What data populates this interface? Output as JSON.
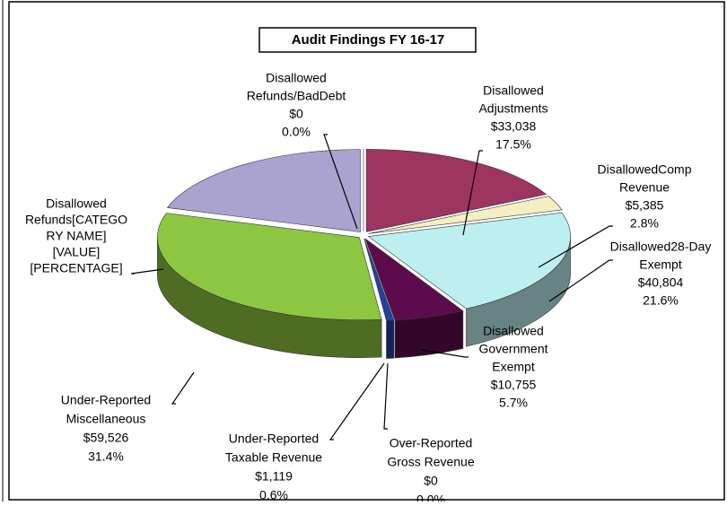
{
  "chart_data": {
    "type": "pie3d",
    "title": "Audit Findings FY 16-17",
    "categories": [
      [
        "Disallowed",
        "Refunds/BadDebt"
      ],
      [
        "Disallowed",
        "Adjustments"
      ],
      [
        "DisallowedComp",
        "Revenue"
      ],
      [
        "Disallowed28-Day",
        "Exempt"
      ],
      [
        "Disallowed",
        "Government",
        "Exempt"
      ],
      [
        "Over-Reported",
        "Gross Revenue"
      ],
      [
        "Under-Reported",
        "Taxable Revenue"
      ],
      [
        "Under-Reported",
        "Miscellaneous"
      ],
      [
        "Disallowed",
        "Refunds[CATEGO",
        "RY NAME]",
        "[VALUE]",
        "[PERCENTAGE]"
      ]
    ],
    "values": [
      0,
      33038,
      5385,
      40804,
      10755,
      0,
      1119,
      59526,
      38200
    ],
    "value_labels": [
      "$0",
      "$33,038",
      "$5,385",
      "$40,804",
      "$10,755",
      "$0",
      "$1,119",
      "$59,526",
      null
    ],
    "percentages": [
      0.0,
      17.5,
      2.8,
      21.6,
      5.7,
      0.0,
      0.6,
      31.4,
      20.2
    ],
    "percentage_labels": [
      "0.0%",
      "17.5%",
      "2.8%",
      "21.6%",
      "5.7%",
      "0.0%",
      "0.6%",
      "31.4%",
      null
    ],
    "colors": [
      "#ffffff",
      "#9e3460",
      "#f3efc2",
      "#bdeef0",
      "#5c0c4c",
      "#ffffff",
      "#2040a8",
      "#8dc640",
      "#aaa2cf"
    ]
  }
}
